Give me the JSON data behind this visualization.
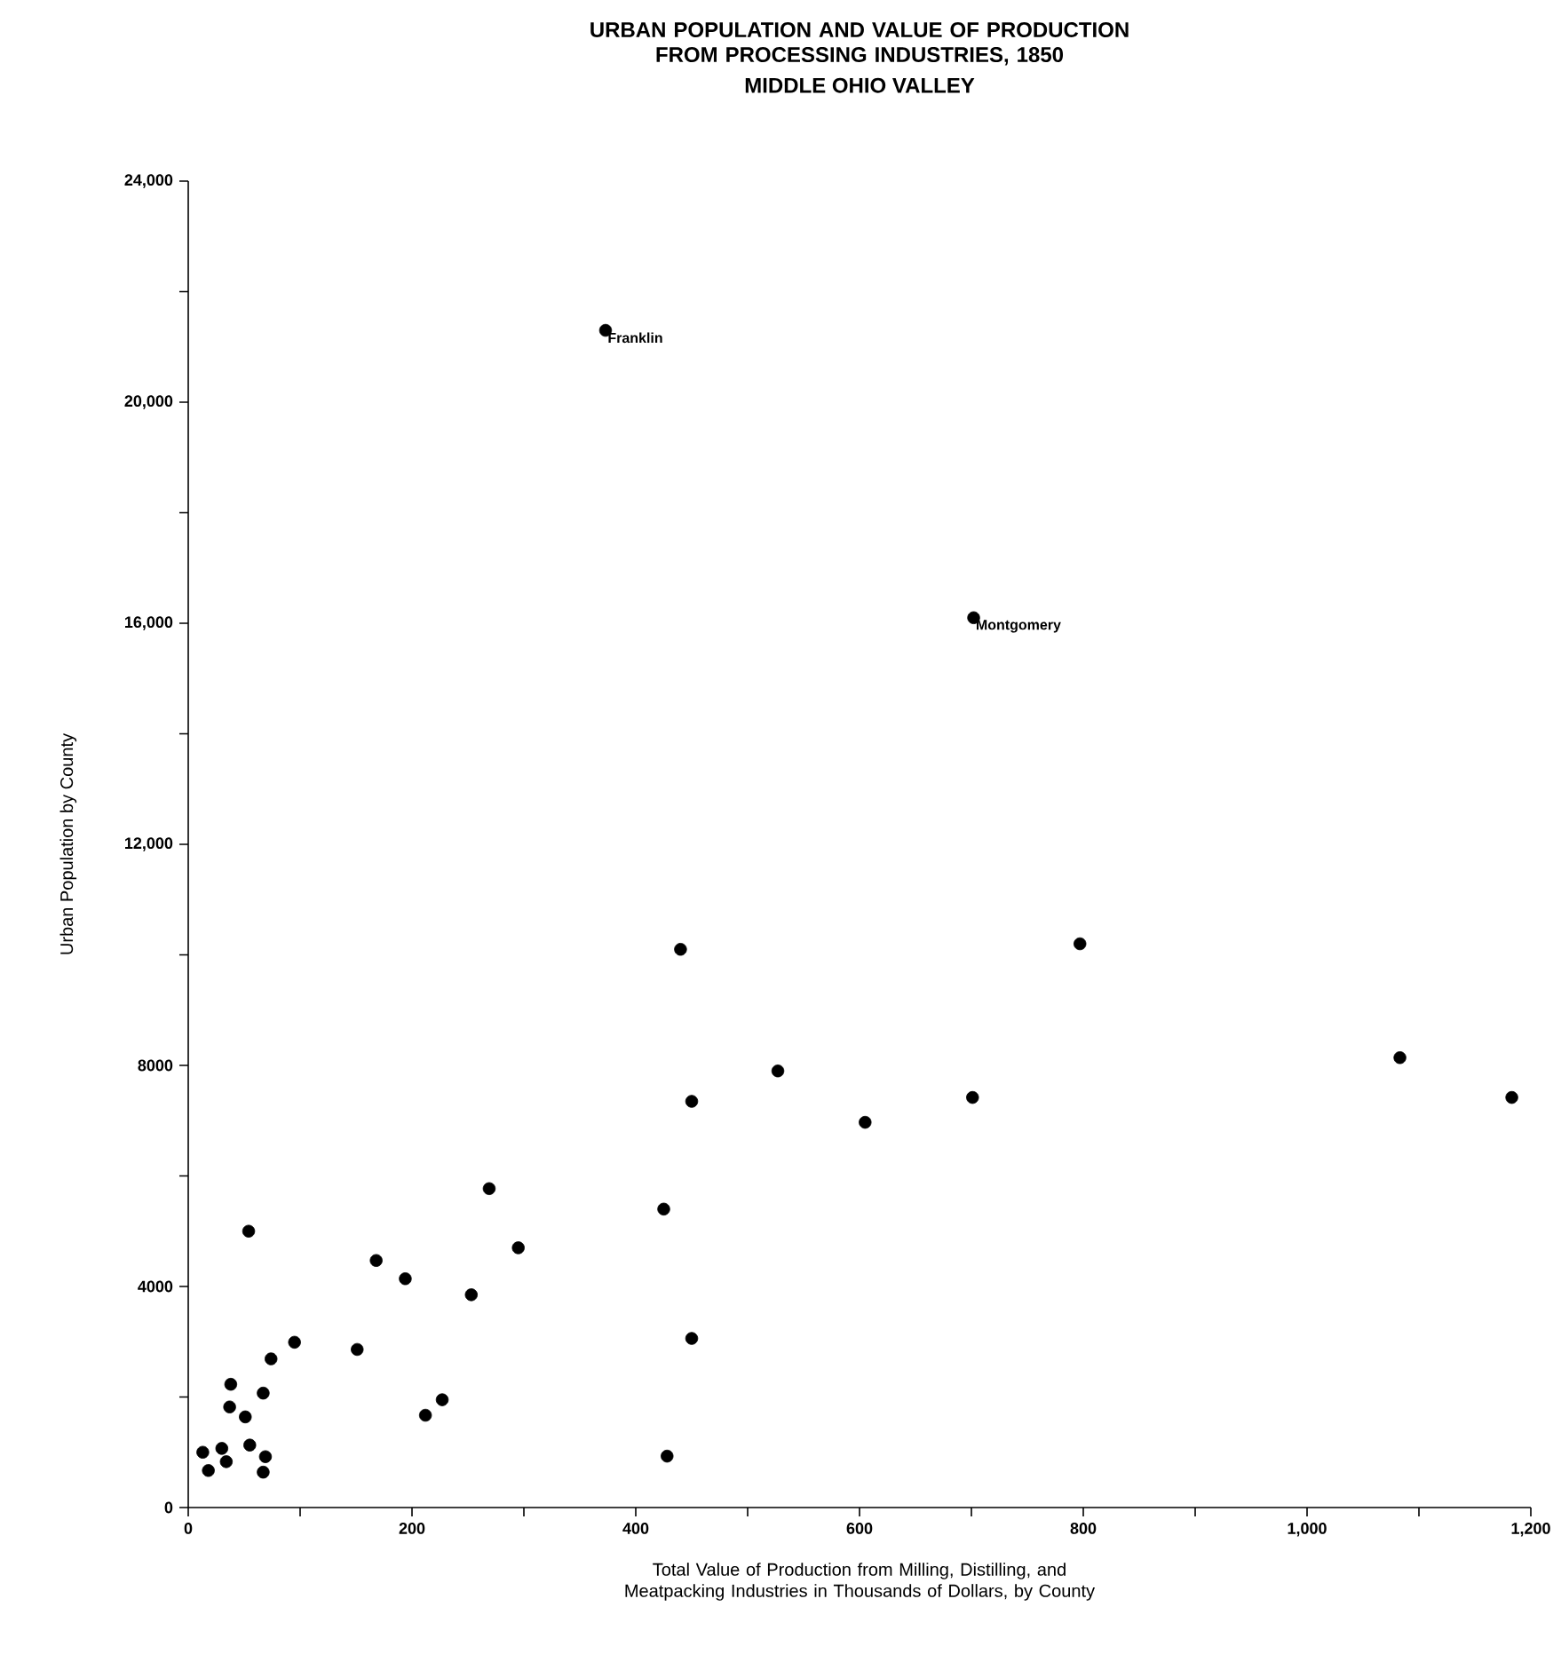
{
  "chart_data": {
    "type": "scatter",
    "title": "URBAN POPULATION AND VALUE OF PRODUCTION FROM PROCESSING INDUSTRIES, 1850",
    "subtitle": "MIDDLE OHIO VALLEY",
    "xlabel": "Total Value of Production from Milling, Distilling, and Meatpacking Industries in Thousands of Dollars, by County",
    "ylabel": "Urban Population by County",
    "x": [
      13,
      18,
      30,
      34,
      37,
      38,
      51,
      54,
      55,
      67,
      69,
      67,
      74,
      95,
      151,
      168,
      194,
      212,
      227,
      253,
      269,
      295,
      425,
      450,
      428,
      373,
      702,
      527,
      605,
      701,
      797,
      1083,
      1183,
      440,
      450
    ],
    "values": [
      1000,
      670,
      1070,
      830,
      1820,
      2230,
      1640,
      5000,
      1130,
      2070,
      920,
      640,
      2690,
      2990,
      2860,
      4470,
      4140,
      1670,
      1950,
      3850,
      5770,
      4700,
      5400,
      3060,
      930,
      21300,
      16100,
      7900,
      6970,
      7420,
      10200,
      8140,
      7420,
      10100,
      7350
    ],
    "color": "#000000",
    "marker": "circle",
    "xlim": [
      0,
      1200
    ],
    "ylim": [
      0,
      24000
    ],
    "xticks": [
      0,
      {
        "value": 100,
        "label": null
      },
      200,
      {
        "value": 300,
        "label": null
      },
      400,
      {
        "value": 500,
        "label": null
      },
      600,
      {
        "value": 700,
        "label": null
      },
      800,
      {
        "value": 900,
        "label": null
      },
      {
        "value": 1000,
        "label": "1,000"
      },
      {
        "value": 1100,
        "label": null
      },
      {
        "value": 1200,
        "label": "1,200"
      }
    ],
    "yticks": [
      0,
      {
        "value": 2000,
        "label": null
      },
      4000,
      {
        "value": 6000,
        "label": null
      },
      8000,
      {
        "value": 10000,
        "label": null
      },
      {
        "value": 12000,
        "label": "12,000"
      },
      {
        "value": 14000,
        "label": null
      },
      {
        "value": 16000,
        "label": "16,000"
      },
      {
        "value": 18000,
        "label": null
      },
      {
        "value": 20000,
        "label": "20,000"
      },
      {
        "value": 22000,
        "label": null
      },
      {
        "value": 24000,
        "label": "24,000"
      }
    ],
    "annotations": [
      {
        "text": "Franklin",
        "x": 373,
        "y": 21300
      },
      {
        "text": "Montgomery",
        "x": 702,
        "y": 16100
      }
    ]
  }
}
